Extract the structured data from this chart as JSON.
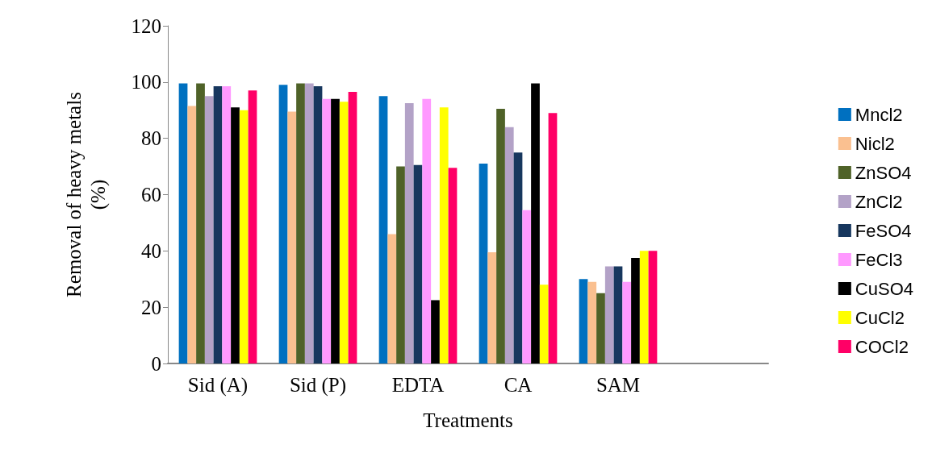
{
  "chart_data": {
    "type": "bar",
    "xlabel": "Treatments",
    "ylabel": "Removal of heavy metals\n(%)",
    "categories": [
      "Sid (A)",
      "Sid (P)",
      "EDTA",
      "CA",
      "SAM",
      null
    ],
    "ylim": [
      0,
      120
    ],
    "yticks": [
      0,
      20,
      40,
      60,
      80,
      100,
      120
    ],
    "grid": false,
    "legend": "right",
    "series": [
      {
        "name": "Mncl2",
        "color": "#0070c0",
        "values": [
          99.5,
          99,
          95,
          71,
          30,
          null
        ]
      },
      {
        "name": "Nicl2",
        "color": "#fac090",
        "values": [
          91.5,
          89.5,
          46,
          39.5,
          29,
          null
        ]
      },
      {
        "name": "ZnSO4",
        "color": "#4f6228",
        "values": [
          99.5,
          99.5,
          70,
          90.5,
          25,
          null
        ]
      },
      {
        "name": "ZnCl2",
        "color": "#b3a2c7",
        "values": [
          95,
          99.5,
          92.5,
          84,
          34.5,
          null
        ]
      },
      {
        "name": "FeSO4",
        "color": "#17375e",
        "values": [
          98.5,
          98.5,
          70.5,
          75,
          34.5,
          null
        ]
      },
      {
        "name": "FeCl3",
        "color": "#ff99ff",
        "values": [
          98.5,
          94,
          94,
          54.5,
          29,
          null
        ]
      },
      {
        "name": "CuSO4",
        "color": "#000000",
        "values": [
          91,
          94,
          22.5,
          99.5,
          37.5,
          null
        ]
      },
      {
        "name": "CuCl2",
        "color": "#ffff00",
        "values": [
          90,
          93,
          91,
          28,
          40,
          null
        ]
      },
      {
        "name": "COCl2",
        "color": "#ff0066",
        "values": [
          97,
          96.5,
          69.5,
          89,
          40,
          null
        ]
      }
    ]
  }
}
